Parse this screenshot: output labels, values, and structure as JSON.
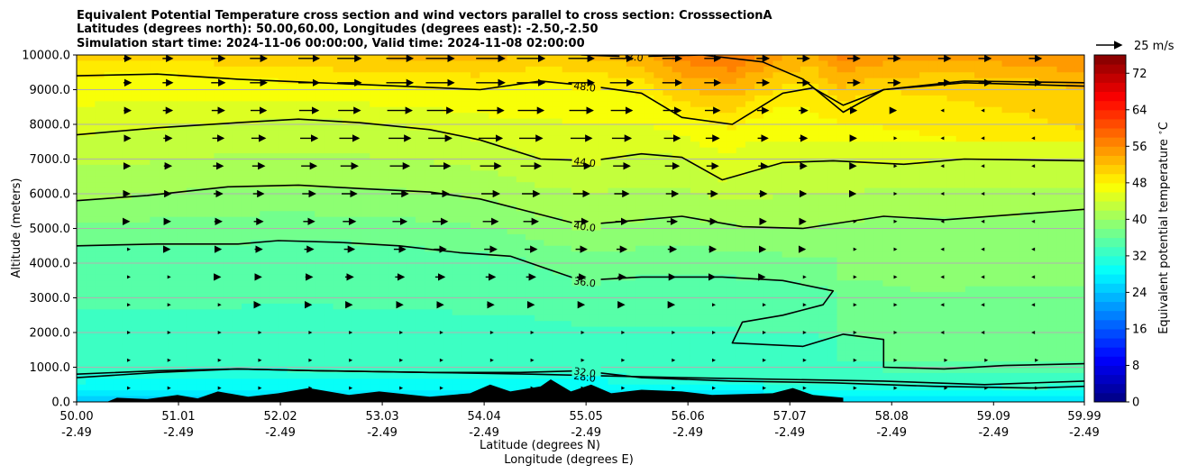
{
  "chart_data": {
    "type": "contourf",
    "title_lines": [
      "Equivalent Potential Temperature cross section and wind vectors parallel to cross section: CrosssectionA",
      "Latitudes (degrees north): 50.00,60.00, Longitudes (degrees east): -2.50,-2.50",
      "Simulation start time: 2024-11-06 00:00:00, Valid time: 2024-11-08 02:00:00"
    ],
    "ylabel": "Altitude (meters)",
    "xlabel_lat": "Latitude (degrees N)",
    "xlabel_lon": "Longitude (degrees E)",
    "y_ticks": [
      "0.0",
      "1000.0",
      "2000.0",
      "3000.0",
      "4000.0",
      "5000.0",
      "6000.0",
      "7000.0",
      "8000.0",
      "9000.0",
      "10000.0"
    ],
    "ylim": [
      0,
      10000
    ],
    "x_ticks_lat": [
      "50.00",
      "51.01",
      "52.02",
      "53.03",
      "54.04",
      "55.05",
      "56.06",
      "57.07",
      "58.08",
      "59.09",
      "59.99"
    ],
    "x_ticks_lon": [
      "-2.49",
      "-2.49",
      "-2.49",
      "-2.49",
      "-2.49",
      "-2.49",
      "-2.49",
      "-2.49",
      "-2.49",
      "-2.49",
      "-2.49"
    ],
    "xlim_lat": [
      50.0,
      59.99
    ],
    "grid": "horizontal",
    "colorbar": {
      "label": "Equivalent potential temperature $^\\circ$C",
      "ticks": [
        "0",
        "8",
        "16",
        "24",
        "32",
        "40",
        "48",
        "56",
        "64",
        "72"
      ],
      "min": 0,
      "max": 76,
      "step": 2
    },
    "quiver_key": {
      "label": "25 m/s",
      "speed": 25
    },
    "contours": [
      {
        "level": 28,
        "label": "28.0",
        "points": [
          [
            50.0,
            700
          ],
          [
            50.8,
            850
          ],
          [
            51.6,
            950
          ],
          [
            52.4,
            900
          ],
          [
            53.5,
            850
          ],
          [
            54.5,
            800
          ],
          [
            55.2,
            750
          ],
          [
            56.0,
            700
          ],
          [
            57.0,
            650
          ],
          [
            58.0,
            600
          ],
          [
            59.0,
            500
          ],
          [
            59.99,
            600
          ]
        ]
      },
      {
        "level": 32,
        "label": "32.0",
        "points": [
          [
            50.0,
            800
          ],
          [
            50.8,
            900
          ],
          [
            51.6,
            950
          ],
          [
            52.4,
            900
          ],
          [
            53.5,
            850
          ],
          [
            54.4,
            850
          ],
          [
            55.0,
            900
          ],
          [
            55.6,
            700
          ],
          [
            56.5,
            600
          ],
          [
            57.5,
            550
          ],
          [
            58.5,
            450
          ],
          [
            59.5,
            400
          ],
          [
            59.99,
            450
          ]
        ]
      },
      {
        "level": 36,
        "label": "36.0",
        "points": [
          [
            50.0,
            4500
          ],
          [
            50.8,
            4550
          ],
          [
            51.6,
            4550
          ],
          [
            52.0,
            4650
          ],
          [
            52.6,
            4600
          ],
          [
            53.2,
            4500
          ],
          [
            53.8,
            4300
          ],
          [
            54.3,
            4200
          ],
          [
            54.7,
            3800
          ],
          [
            55.0,
            3500
          ],
          [
            55.6,
            3600
          ],
          [
            56.4,
            3600
          ],
          [
            57.0,
            3500
          ],
          [
            57.5,
            3200
          ],
          [
            57.4,
            2800
          ],
          [
            57.0,
            2500
          ],
          [
            56.6,
            2300
          ],
          [
            56.5,
            1700
          ],
          [
            57.2,
            1600
          ],
          [
            57.6,
            1950
          ],
          [
            58.0,
            1800
          ],
          [
            58.0,
            1000
          ],
          [
            58.6,
            950
          ],
          [
            59.2,
            1050
          ],
          [
            59.99,
            1100
          ]
        ]
      },
      {
        "level": 40,
        "label": "40.0",
        "points": [
          [
            50.0,
            5800
          ],
          [
            50.7,
            5950
          ],
          [
            51.5,
            6200
          ],
          [
            52.2,
            6250
          ],
          [
            52.8,
            6150
          ],
          [
            53.5,
            6050
          ],
          [
            54.0,
            5850
          ],
          [
            54.6,
            5400
          ],
          [
            55.0,
            5100
          ],
          [
            55.6,
            5250
          ],
          [
            56.0,
            5350
          ],
          [
            56.6,
            5050
          ],
          [
            57.2,
            5000
          ],
          [
            58.0,
            5350
          ],
          [
            58.6,
            5250
          ],
          [
            59.3,
            5400
          ],
          [
            59.99,
            5550
          ]
        ]
      },
      {
        "level": 44,
        "label": "44.0",
        "points": [
          [
            50.0,
            7700
          ],
          [
            50.8,
            7900
          ],
          [
            51.6,
            8050
          ],
          [
            52.2,
            8150
          ],
          [
            52.8,
            8050
          ],
          [
            53.5,
            7850
          ],
          [
            54.0,
            7550
          ],
          [
            54.6,
            7000
          ],
          [
            55.1,
            6950
          ],
          [
            55.6,
            7150
          ],
          [
            56.0,
            7050
          ],
          [
            56.4,
            6400
          ],
          [
            57.0,
            6900
          ],
          [
            57.5,
            6950
          ],
          [
            58.2,
            6850
          ],
          [
            58.8,
            7000
          ],
          [
            59.99,
            6950
          ]
        ]
      },
      {
        "level": 48,
        "label": "48.0",
        "points": [
          [
            50.0,
            9400
          ],
          [
            50.8,
            9450
          ],
          [
            51.6,
            9300
          ],
          [
            52.4,
            9200
          ],
          [
            53.2,
            9100
          ],
          [
            54.0,
            9000
          ],
          [
            54.6,
            9250
          ],
          [
            55.1,
            9100
          ],
          [
            55.6,
            8900
          ],
          [
            56.0,
            8200
          ],
          [
            56.5,
            8000
          ],
          [
            57.0,
            8900
          ],
          [
            57.3,
            9050
          ],
          [
            57.6,
            8550
          ],
          [
            58.0,
            9000
          ],
          [
            58.8,
            9250
          ],
          [
            59.99,
            9200
          ]
        ]
      },
      {
        "level": 52,
        "label": "52.0",
        "points": [
          [
            55.0,
            10000
          ],
          [
            55.5,
            9950
          ],
          [
            56.2,
            10000
          ],
          [
            56.8,
            9800
          ],
          [
            57.2,
            9300
          ],
          [
            57.6,
            8350
          ],
          [
            58.0,
            9000
          ],
          [
            58.8,
            9200
          ],
          [
            59.99,
            9100
          ]
        ]
      }
    ],
    "wind_rows_altitude": [
      400,
      1200,
      2000,
      2800,
      3600,
      4400,
      5200,
      6000,
      6800,
      7600,
      8400,
      9200,
      9900
    ],
    "wind_cols_latitude": [
      50.5,
      50.9,
      51.4,
      51.8,
      52.3,
      52.7,
      53.2,
      53.6,
      54.1,
      54.5,
      55.0,
      55.4,
      55.9,
      56.3,
      56.8,
      57.2,
      57.7,
      58.1,
      58.6,
      59.0,
      59.5
    ],
    "wind_u_peak_ms": 28,
    "terrain_profile": [
      [
        50.0,
        0
      ],
      [
        50.3,
        0
      ],
      [
        50.4,
        120
      ],
      [
        50.7,
        80
      ],
      [
        51.0,
        200
      ],
      [
        51.2,
        100
      ],
      [
        51.4,
        300
      ],
      [
        51.7,
        150
      ],
      [
        52.0,
        250
      ],
      [
        52.3,
        400
      ],
      [
        52.7,
        200
      ],
      [
        53.0,
        300
      ],
      [
        53.5,
        150
      ],
      [
        53.9,
        250
      ],
      [
        54.1,
        500
      ],
      [
        54.3,
        300
      ],
      [
        54.6,
        450
      ],
      [
        54.7,
        650
      ],
      [
        54.9,
        300
      ],
      [
        55.1,
        500
      ],
      [
        55.3,
        250
      ],
      [
        55.6,
        350
      ],
      [
        56.0,
        300
      ],
      [
        56.3,
        200
      ],
      [
        56.9,
        250
      ],
      [
        57.1,
        400
      ],
      [
        57.3,
        200
      ],
      [
        57.6,
        120
      ],
      [
        57.6,
        0
      ]
    ]
  }
}
